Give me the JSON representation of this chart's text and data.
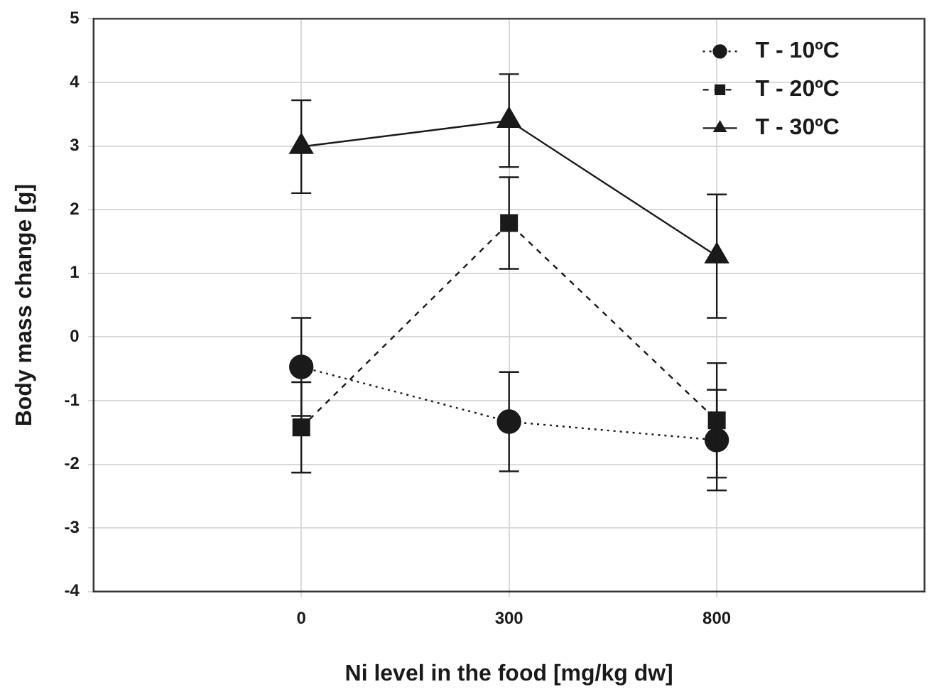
{
  "chart_data": {
    "type": "line",
    "xlabel": "Ni level in the food [mg/kg dw]",
    "ylabel": "Body mass change [g]",
    "categories": [
      "0",
      "300",
      "800"
    ],
    "series": [
      {
        "name": "T - 10ºC",
        "color": "#1a1a1a",
        "marker": "circle",
        "line_style": "dotted",
        "values": [
          -0.47,
          -1.33,
          -1.62
        ],
        "errors": [
          0.77,
          0.78,
          0.79
        ]
      },
      {
        "name": "T - 20ºC",
        "color": "#1a1a1a",
        "marker": "square",
        "line_style": "dashed",
        "values": [
          -1.42,
          1.79,
          -1.31
        ],
        "errors": [
          0.71,
          0.72,
          0.9
        ]
      },
      {
        "name": "T - 30ºC",
        "color": "#1a1a1a",
        "marker": "triangle",
        "line_style": "solid",
        "values": [
          2.99,
          3.4,
          1.27
        ],
        "errors": [
          0.73,
          0.73,
          0.97
        ]
      }
    ],
    "ylim": [
      -4,
      5
    ],
    "yticks": [
      -4,
      -3,
      -2,
      -1,
      0,
      1,
      2,
      3,
      4,
      5
    ],
    "grid": true,
    "legend": "top right"
  }
}
